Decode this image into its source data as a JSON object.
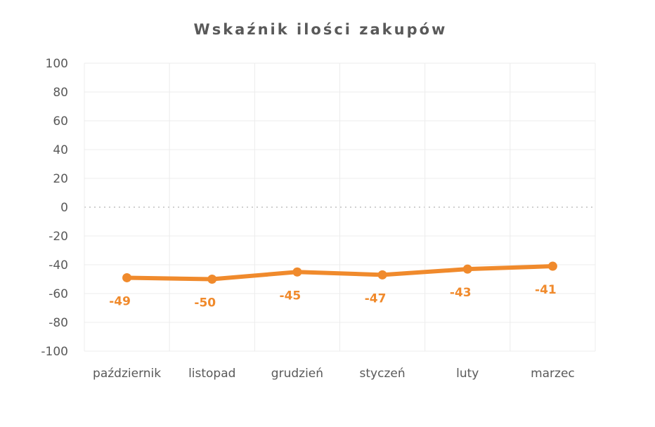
{
  "chart_data": {
    "type": "line",
    "title": "Wskaźnik ilości zakupów",
    "categories": [
      "październik",
      "listopad",
      "grudzień",
      "styczeń",
      "luty",
      "marzec"
    ],
    "series": [
      {
        "values": [
          -49,
          -50,
          -45,
          -47,
          -43,
          -41
        ],
        "color": "#F08A2C"
      }
    ],
    "data_labels": [
      "-49",
      "-50",
      "-45",
      "-47",
      "-43",
      "-41"
    ],
    "ylim": [
      -100,
      100
    ],
    "yticks": [
      100,
      80,
      60,
      40,
      20,
      0,
      -20,
      -40,
      -60,
      -80,
      -100
    ],
    "ytick_labels": [
      "100",
      "80",
      "60",
      "40",
      "20",
      "0",
      "-20",
      "-40",
      "-60",
      "-80",
      "-100"
    ],
    "zero_line": "dotted",
    "grid": true,
    "legend": "none"
  }
}
